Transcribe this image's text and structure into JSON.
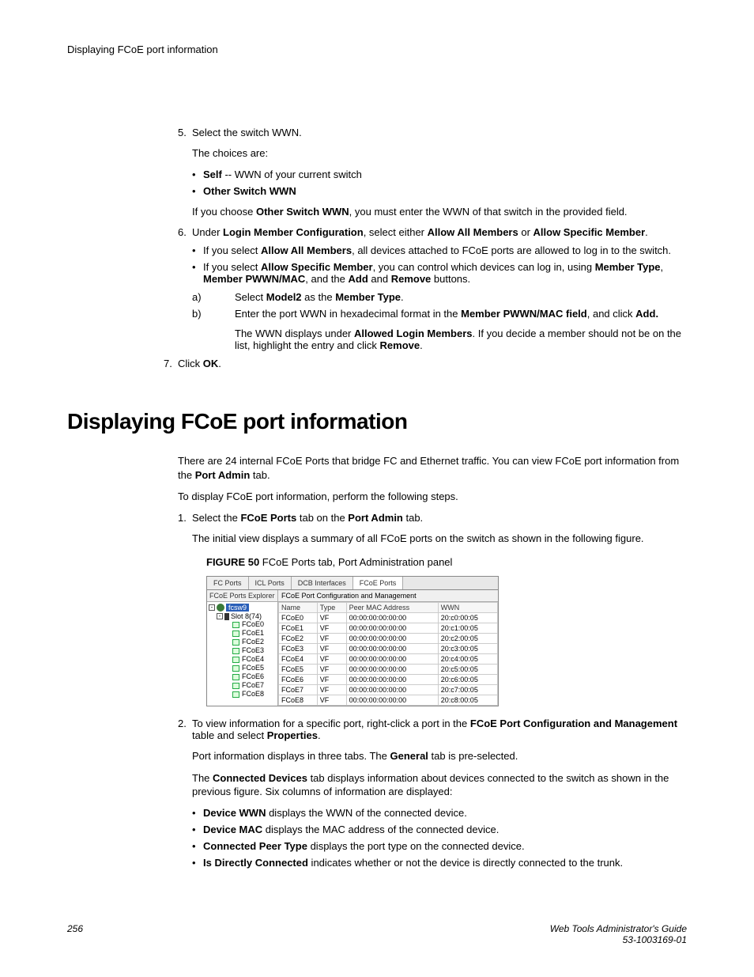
{
  "runningHeader": "Displaying FCoE port information",
  "step5": {
    "num": "5.",
    "text": "Select the switch WWN.",
    "choicesLabel": "The choices are:",
    "choice1_b": "Self",
    "choice1_rest": " -- WWN of your current switch",
    "choice2_b": "Other Switch WWN",
    "afterPre": "If you choose ",
    "afterB": "Other Switch WWN",
    "afterPost": ", you must enter the WWN of that switch in the provided field."
  },
  "step6": {
    "num": "6.",
    "pre": "Under ",
    "b1": "Login Member Configuration",
    "mid1": ", select either ",
    "b2": "Allow All Members",
    "mid2": " or ",
    "b3": "Allow Specific Member",
    "post": ".",
    "bul1_pre": "If you select ",
    "bul1_b": "Allow All Members",
    "bul1_post": ", all devices attached to FCoE ports are allowed to log in to the switch.",
    "bul2_pre": "If you select ",
    "bul2_b1": "Allow Specific Member",
    "bul2_mid1": ", you can control which devices can log in, using ",
    "bul2_b2": "Member Type",
    "bul2_mid2": ", ",
    "bul2_b3": "Member PWWN/MAC",
    "bul2_mid3": ", and the ",
    "bul2_b4": "Add",
    "bul2_mid4": " and ",
    "bul2_b5": "Remove",
    "bul2_post": " buttons.",
    "a_label": "a)",
    "a_pre": "Select ",
    "a_b1": "Model2",
    "a_mid": " as the ",
    "a_b2": "Member Type",
    "a_post": ".",
    "b_label": "b)",
    "b_pre": "Enter the port WWN in hexadecimal format in the ",
    "b_b1": "Member PWWN/MAC field",
    "b_mid": ", and click ",
    "b_b2": "Add.",
    "b_sub_pre": "The WWN displays under ",
    "b_sub_b1": "Allowed Login Members",
    "b_sub_mid": ". If you decide a member should not be on the list, highlight the entry and click ",
    "b_sub_b2": "Remove",
    "b_sub_post": "."
  },
  "step7": {
    "num": "7.",
    "pre": "Click ",
    "b": "OK",
    "post": "."
  },
  "sectionTitle": "Displaying FCoE port information",
  "intro_pre": "There are 24 internal FCoE Ports that bridge FC and Ethernet traffic. You can view FCoE port information from the ",
  "intro_b": "Port Admin",
  "intro_post": " tab.",
  "intro2": "To display FCoE port information, perform the following steps.",
  "step1": {
    "num": "1.",
    "pre": "Select the ",
    "b1": "FCoE Ports",
    "mid": " tab on the ",
    "b2": "Port Admin",
    "post": " tab.",
    "after": "The initial view displays a summary of all FCoE ports on the switch as shown in the following figure."
  },
  "figureCaption_b": "FIGURE 50",
  "figureCaption_rest": " FCoE Ports tab, Port Administration panel",
  "panel": {
    "tabs": [
      "FC Ports",
      "ICL Ports",
      "DCB Interfaces",
      "FCoE Ports"
    ],
    "activeTabIndex": 3,
    "explorerHeader": "FCoE Ports Explorer",
    "rootLabel": "fcsw9",
    "slotLabel": "Slot 8(74)",
    "leaves": [
      "FCoE0",
      "FCoE1",
      "FCoE2",
      "FCoE3",
      "FCoE4",
      "FCoE5",
      "FCoE6",
      "FCoE7",
      "FCoE8"
    ],
    "rightHeader": "FCoE Port Configuration and Management",
    "columns": [
      "Name",
      "Type",
      "Peer MAC Address",
      "WWN"
    ],
    "rows": [
      [
        "FCoE0",
        "VF",
        "00:00:00:00:00:00",
        "20:c0:00:05"
      ],
      [
        "FCoE1",
        "VF",
        "00:00:00:00:00:00",
        "20:c1:00:05"
      ],
      [
        "FCoE2",
        "VF",
        "00:00:00:00:00:00",
        "20:c2:00:05"
      ],
      [
        "FCoE3",
        "VF",
        "00:00:00:00:00:00",
        "20:c3:00:05"
      ],
      [
        "FCoE4",
        "VF",
        "00:00:00:00:00:00",
        "20:c4:00:05"
      ],
      [
        "FCoE5",
        "VF",
        "00:00:00:00:00:00",
        "20:c5:00:05"
      ],
      [
        "FCoE6",
        "VF",
        "00:00:00:00:00:00",
        "20:c6:00:05"
      ],
      [
        "FCoE7",
        "VF",
        "00:00:00:00:00:00",
        "20:c7:00:05"
      ],
      [
        "FCoE8",
        "VF",
        "00:00:00:00:00:00",
        "20:c8:00:05"
      ]
    ]
  },
  "step2": {
    "num": "2.",
    "pre": "To view information for a specific port, right-click a port in the ",
    "b1": "FCoE Port Configuration and Management",
    "mid": " table and select ",
    "b2": "Properties",
    "post": ".",
    "p1_pre": "Port information displays in three tabs. The ",
    "p1_b": "General",
    "p1_post": " tab is pre-selected.",
    "p2_pre": "The ",
    "p2_b": "Connected Devices",
    "p2_post": " tab displays information about devices connected to the switch as shown in the previous figure. Six columns of information are displayed:",
    "bul1_b": "Device WWN",
    "bul1_rest": " displays the WWN of the connected device.",
    "bul2_b": "Device MAC",
    "bul2_rest": " displays the MAC address of the connected device.",
    "bul3_b": "Connected Peer Type",
    "bul3_rest": " displays the port type on the connected device.",
    "bul4_b": "Is Directly Connected",
    "bul4_rest": " indicates whether or not the device is directly connected to the trunk."
  },
  "footer": {
    "pageNum": "256",
    "guide": "Web Tools Administrator's Guide",
    "docnum": "53-1003169-01"
  }
}
